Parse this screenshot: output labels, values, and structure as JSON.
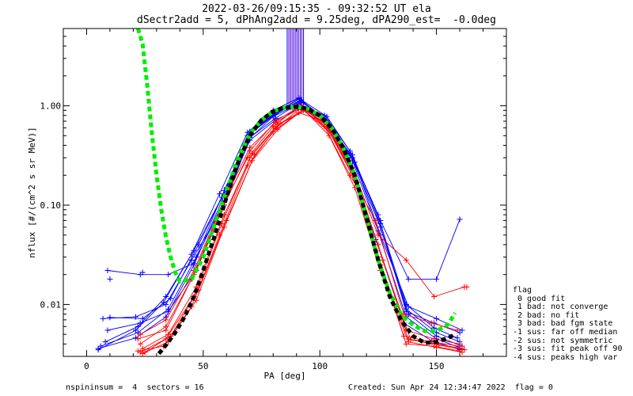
{
  "chart_data": {
    "type": "line",
    "title": "2022-03-26/09:15:35 - 09:32:52 UT ela",
    "subtitle": "dSectr2add = 5, dPhAng2add = 9.25deg, dPA290_est=  -0.0deg",
    "xlabel": "PA [deg]",
    "ylabel": "nflux [#/(cm^2 s sr MeV)]",
    "xlim": [
      -10,
      180
    ],
    "ylim": [
      0.003,
      6
    ],
    "ylog": true,
    "xticks": [
      "0",
      "50",
      "100",
      "150"
    ],
    "yticks": [
      "0.01",
      "0.10",
      "1.00"
    ],
    "grid": false,
    "colors": {
      "blue": "#0000ff",
      "red": "#ff0000",
      "green": "#00ee00",
      "black": "#000000",
      "purple": "#8000c0"
    },
    "series": [
      {
        "color": "blue",
        "x": [
          5,
          21,
          34,
          46,
          58,
          69,
          80,
          91,
          102,
          113,
          125,
          137,
          150,
          160
        ],
        "y": [
          0.0036,
          0.0046,
          0.0075,
          0.025,
          0.11,
          0.5,
          0.8,
          1.18,
          0.75,
          0.33,
          0.07,
          0.009,
          0.0052,
          0.0042
        ]
      },
      {
        "color": "blue",
        "x": [
          6,
          22,
          35,
          47,
          59,
          70,
          81,
          92,
          103,
          114,
          126,
          138,
          150,
          161
        ],
        "y": [
          0.0038,
          0.0052,
          0.009,
          0.03,
          0.14,
          0.55,
          0.85,
          1.12,
          0.7,
          0.3,
          0.06,
          0.008,
          0.0048,
          0.0038
        ]
      },
      {
        "color": "blue",
        "x": [
          7,
          21,
          34,
          45,
          58,
          69,
          80,
          91,
          102,
          113,
          125,
          137,
          149,
          160
        ],
        "y": [
          0.0072,
          0.0075,
          0.01,
          0.028,
          0.09,
          0.45,
          0.78,
          1.05,
          0.8,
          0.35,
          0.08,
          0.0085,
          0.0065,
          0.0052
        ]
      },
      {
        "color": "blue",
        "x": [
          8,
          22,
          34,
          46,
          58,
          70,
          81,
          92,
          103,
          114,
          126,
          137,
          149,
          159
        ],
        "y": [
          0.0042,
          0.006,
          0.012,
          0.035,
          0.12,
          0.52,
          0.82,
          1.15,
          0.78,
          0.32,
          0.065,
          0.01,
          0.0058,
          0.0046
        ]
      },
      {
        "color": "blue",
        "x": [
          9,
          23,
          35,
          47,
          59,
          70,
          81,
          92,
          103,
          114,
          125,
          137,
          150,
          161
        ],
        "y": [
          0.0055,
          0.0065,
          0.0085,
          0.022,
          0.1,
          0.48,
          0.75,
          1.1,
          0.72,
          0.28,
          0.055,
          0.0075,
          0.0045,
          0.0036
        ]
      },
      {
        "color": "blue",
        "x": [
          5,
          21,
          33,
          45,
          57,
          69,
          80,
          91,
          102,
          113,
          124,
          136,
          148,
          160
        ],
        "y": [
          0.0035,
          0.0055,
          0.0105,
          0.032,
          0.13,
          0.54,
          0.9,
          1.2,
          0.68,
          0.26,
          0.045,
          0.0065,
          0.0043,
          0.0035
        ]
      },
      {
        "color": "blue",
        "x": [
          10,
          24,
          36,
          48,
          60,
          71,
          82,
          93,
          104,
          115,
          126,
          138,
          150,
          161
        ],
        "y": [
          0.0074,
          0.0072,
          0.0115,
          0.04,
          0.15,
          0.56,
          0.88,
          1.08,
          0.65,
          0.27,
          0.05,
          0.0095,
          0.0072,
          0.0055
        ]
      },
      {
        "color": "blue",
        "x": [
          9,
          23,
          35,
          46,
          58,
          70,
          81,
          92,
          103,
          114,
          126,
          138,
          150,
          160
        ],
        "y": [
          0.022,
          0.02,
          0.02,
          0.026,
          0.1,
          0.45,
          0.72,
          0.95,
          0.7,
          0.3,
          0.07,
          0.018,
          0.018,
          0.072
        ]
      },
      {
        "color": "red",
        "x": [
          23,
          34,
          46,
          58,
          70,
          81,
          92,
          103,
          114,
          125,
          137,
          149,
          160
        ],
        "y": [
          0.0033,
          0.0045,
          0.012,
          0.065,
          0.3,
          0.6,
          0.95,
          0.65,
          0.2,
          0.03,
          0.004,
          0.0038,
          0.0034
        ]
      },
      {
        "color": "red",
        "x": [
          24,
          35,
          47,
          59,
          71,
          82,
          93,
          104,
          115,
          126,
          138,
          150,
          161
        ],
        "y": [
          0.0036,
          0.005,
          0.015,
          0.08,
          0.33,
          0.65,
          0.9,
          0.55,
          0.18,
          0.025,
          0.0045,
          0.004,
          0.0036
        ]
      },
      {
        "color": "red",
        "x": [
          22,
          33,
          45,
          57,
          69,
          80,
          91,
          102,
          113,
          124,
          136,
          148,
          160
        ],
        "y": [
          0.0034,
          0.0038,
          0.0095,
          0.05,
          0.25,
          0.55,
          0.85,
          0.7,
          0.25,
          0.035,
          0.0048,
          0.0042,
          0.0038
        ]
      },
      {
        "color": "red",
        "x": [
          23,
          34,
          46,
          58,
          70,
          81,
          92,
          103,
          114,
          125,
          137,
          149,
          160
        ],
        "y": [
          0.004,
          0.006,
          0.02,
          0.09,
          0.35,
          0.7,
          1.0,
          0.6,
          0.22,
          0.04,
          0.0055,
          0.0045,
          0.004
        ]
      },
      {
        "color": "red",
        "x": [
          24,
          35,
          47,
          59,
          71,
          82,
          93,
          104,
          115,
          126,
          138,
          150,
          161
        ],
        "y": [
          0.0032,
          0.0042,
          0.011,
          0.06,
          0.28,
          0.58,
          0.92,
          0.5,
          0.15,
          0.022,
          0.0042,
          0.0037,
          0.0033
        ]
      },
      {
        "color": "red",
        "x": [
          22,
          34,
          45,
          57,
          69,
          80,
          91,
          102,
          113,
          124,
          136,
          148,
          159
        ],
        "y": [
          0.0045,
          0.0055,
          0.018,
          0.085,
          0.3,
          0.62,
          0.98,
          0.62,
          0.2,
          0.07,
          0.008,
          0.0065,
          0.0055
        ]
      },
      {
        "color": "red",
        "x": [
          25,
          36,
          48,
          60,
          72,
          83,
          94,
          105,
          116,
          127,
          139,
          151,
          162
        ],
        "y": [
          0.0033,
          0.0048,
          0.014,
          0.07,
          0.32,
          0.66,
          0.9,
          0.58,
          0.17,
          0.028,
          0.0044,
          0.0039,
          0.0035
        ]
      },
      {
        "color": "red",
        "x": [
          23,
          34,
          46,
          58,
          70,
          81,
          92,
          103,
          114,
          125,
          137,
          149,
          162
        ],
        "y": [
          0.005,
          0.007,
          0.022,
          0.1,
          0.38,
          0.68,
          0.96,
          0.66,
          0.24,
          0.05,
          0.028,
          0.012,
          0.015
        ]
      }
    ],
    "markers_only": [
      {
        "color": "blue",
        "x": [
          10,
          24
        ],
        "y": [
          0.018,
          0.021
        ]
      },
      {
        "color": "red",
        "x": [
          163
        ],
        "y": [
          0.015
        ]
      }
    ],
    "spikes": {
      "x_from": 86,
      "x_to": 93,
      "colors": [
        "blue",
        "purple"
      ]
    },
    "fits": [
      {
        "name": "green",
        "color": "green",
        "x": [
          22,
          24,
          26,
          28,
          30,
          32,
          34,
          36,
          38,
          40,
          45,
          50,
          55,
          60,
          65,
          70,
          75,
          80,
          85,
          90,
          95,
          100,
          105,
          110,
          115,
          120,
          125,
          130,
          135,
          140,
          145,
          150,
          155,
          158
        ],
        "y": [
          6,
          4.2,
          1.6,
          0.52,
          0.2,
          0.09,
          0.048,
          0.03,
          0.021,
          0.017,
          0.018,
          0.03,
          0.065,
          0.14,
          0.3,
          0.52,
          0.72,
          0.88,
          0.96,
          0.98,
          0.93,
          0.8,
          0.6,
          0.38,
          0.2,
          0.075,
          0.028,
          0.013,
          0.0078,
          0.0062,
          0.0054,
          0.0054,
          0.0063,
          0.0082
        ]
      },
      {
        "name": "black",
        "color": "black",
        "x": [
          31,
          34,
          38,
          42,
          46,
          50,
          55,
          60,
          65,
          70,
          75,
          80,
          85,
          90,
          95,
          100,
          105,
          110,
          115,
          120,
          125,
          130,
          135,
          140,
          145,
          150,
          155,
          158
        ],
        "y": [
          0.0032,
          0.0039,
          0.0052,
          0.0075,
          0.012,
          0.022,
          0.05,
          0.12,
          0.27,
          0.5,
          0.72,
          0.88,
          0.96,
          0.98,
          0.93,
          0.8,
          0.6,
          0.38,
          0.2,
          0.075,
          0.028,
          0.012,
          0.0068,
          0.0048,
          0.0041,
          0.0042,
          0.0046,
          0.005
        ]
      }
    ]
  },
  "legend": {
    "title": "flag",
    "entries": [
      " 0 good fit",
      " 1 bad: not converge",
      " 2 bad: no fit",
      " 3 bad: bad fgm state",
      "-1 sus: far off median",
      "-2 sus: not symmetric",
      "-3 sus: fit peak off 90",
      "-4 sus: peaks high var"
    ]
  },
  "footer": {
    "left": "nspininsum =  4  sectors = 16",
    "right": "Created: Sun Apr 24 12:34:47 2022  flag = 0"
  }
}
